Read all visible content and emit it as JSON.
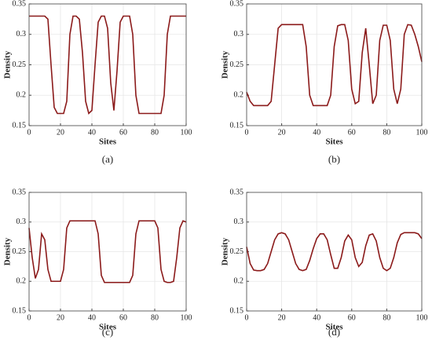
{
  "chart_data": [
    {
      "type": "line",
      "panel_label": "(a)",
      "xlabel": "Sites",
      "ylabel": "Density",
      "color": "#8b1a1a",
      "x": [
        0,
        2,
        4,
        6,
        8,
        10,
        12,
        14,
        16,
        18,
        20,
        22,
        24,
        26,
        28,
        30,
        32,
        34,
        36,
        38,
        40,
        42,
        44,
        46,
        48,
        50,
        52,
        54,
        56,
        58,
        60,
        62,
        64,
        66,
        68,
        70,
        72,
        74,
        76,
        78,
        80,
        82,
        84,
        86,
        88,
        90,
        92,
        94,
        96,
        98,
        100
      ],
      "values": [
        0.33,
        0.33,
        0.33,
        0.33,
        0.33,
        0.33,
        0.325,
        0.25,
        0.18,
        0.17,
        0.17,
        0.17,
        0.19,
        0.3,
        0.33,
        0.33,
        0.325,
        0.27,
        0.19,
        0.17,
        0.175,
        0.25,
        0.32,
        0.33,
        0.33,
        0.31,
        0.22,
        0.175,
        0.24,
        0.32,
        0.33,
        0.33,
        0.33,
        0.3,
        0.2,
        0.17,
        0.17,
        0.17,
        0.17,
        0.17,
        0.17,
        0.17,
        0.17,
        0.2,
        0.3,
        0.33,
        0.33,
        0.33,
        0.33,
        0.33,
        0.33
      ],
      "xlim": [
        0,
        100
      ],
      "xticks": [
        0,
        20,
        40,
        60,
        80,
        100
      ],
      "ylim": [
        0.15,
        0.35
      ],
      "yticks": [
        0.15,
        0.2,
        0.25,
        0.3,
        0.35
      ],
      "grid": true
    },
    {
      "type": "line",
      "panel_label": "(b)",
      "xlabel": "Sites",
      "ylabel": "Density",
      "color": "#8b1a1a",
      "x": [
        0,
        2,
        4,
        6,
        8,
        10,
        12,
        14,
        16,
        18,
        20,
        22,
        24,
        26,
        28,
        30,
        32,
        34,
        36,
        38,
        40,
        42,
        44,
        46,
        48,
        50,
        52,
        54,
        56,
        58,
        60,
        62,
        64,
        66,
        68,
        70,
        72,
        74,
        76,
        78,
        80,
        82,
        84,
        86,
        88,
        90,
        92,
        94,
        96,
        98,
        100
      ],
      "values": [
        0.205,
        0.19,
        0.183,
        0.183,
        0.183,
        0.183,
        0.183,
        0.19,
        0.25,
        0.31,
        0.316,
        0.316,
        0.316,
        0.316,
        0.316,
        0.316,
        0.316,
        0.28,
        0.2,
        0.183,
        0.183,
        0.183,
        0.183,
        0.183,
        0.2,
        0.28,
        0.314,
        0.316,
        0.316,
        0.29,
        0.21,
        0.186,
        0.19,
        0.27,
        0.31,
        0.25,
        0.186,
        0.2,
        0.29,
        0.315,
        0.315,
        0.29,
        0.21,
        0.186,
        0.21,
        0.3,
        0.316,
        0.315,
        0.3,
        0.28,
        0.255
      ],
      "xlim": [
        0,
        100
      ],
      "xticks": [
        0,
        20,
        40,
        60,
        80,
        100
      ],
      "ylim": [
        0.15,
        0.35
      ],
      "yticks": [
        0.15,
        0.2,
        0.25,
        0.3,
        0.35
      ],
      "grid": true
    },
    {
      "type": "line",
      "panel_label": "(c)",
      "xlabel": "Sites",
      "ylabel": "Density",
      "color": "#8b1a1a",
      "x": [
        0,
        2,
        4,
        6,
        8,
        10,
        12,
        14,
        16,
        18,
        20,
        22,
        24,
        26,
        28,
        30,
        32,
        34,
        36,
        38,
        40,
        42,
        44,
        46,
        48,
        50,
        52,
        54,
        56,
        58,
        60,
        62,
        64,
        66,
        68,
        70,
        72,
        74,
        76,
        78,
        80,
        82,
        84,
        86,
        88,
        90,
        92,
        94,
        96,
        98,
        100
      ],
      "values": [
        0.29,
        0.24,
        0.205,
        0.22,
        0.28,
        0.27,
        0.22,
        0.2,
        0.2,
        0.2,
        0.2,
        0.22,
        0.29,
        0.302,
        0.302,
        0.302,
        0.302,
        0.302,
        0.302,
        0.302,
        0.302,
        0.302,
        0.28,
        0.21,
        0.198,
        0.198,
        0.198,
        0.198,
        0.198,
        0.198,
        0.198,
        0.198,
        0.198,
        0.21,
        0.28,
        0.302,
        0.302,
        0.302,
        0.302,
        0.302,
        0.302,
        0.29,
        0.22,
        0.2,
        0.198,
        0.198,
        0.2,
        0.24,
        0.29,
        0.302,
        0.3
      ],
      "xlim": [
        0,
        100
      ],
      "xticks": [
        0,
        20,
        40,
        60,
        80,
        100
      ],
      "ylim": [
        0.15,
        0.35
      ],
      "yticks": [
        0.15,
        0.2,
        0.25,
        0.3,
        0.35
      ],
      "grid": true
    },
    {
      "type": "line",
      "panel_label": "(d)",
      "xlabel": "Sites",
      "ylabel": "Density",
      "color": "#8b1a1a",
      "x": [
        0,
        2,
        4,
        6,
        8,
        10,
        12,
        14,
        16,
        18,
        20,
        22,
        24,
        26,
        28,
        30,
        32,
        34,
        36,
        38,
        40,
        42,
        44,
        46,
        48,
        50,
        52,
        54,
        56,
        58,
        60,
        62,
        64,
        66,
        68,
        70,
        72,
        74,
        76,
        78,
        80,
        82,
        84,
        86,
        88,
        90,
        92,
        94,
        96,
        98,
        100
      ],
      "values": [
        0.258,
        0.23,
        0.219,
        0.218,
        0.218,
        0.22,
        0.23,
        0.25,
        0.27,
        0.28,
        0.282,
        0.28,
        0.27,
        0.25,
        0.23,
        0.22,
        0.218,
        0.22,
        0.235,
        0.255,
        0.272,
        0.28,
        0.28,
        0.27,
        0.245,
        0.222,
        0.222,
        0.24,
        0.268,
        0.278,
        0.27,
        0.24,
        0.225,
        0.232,
        0.26,
        0.278,
        0.28,
        0.268,
        0.24,
        0.222,
        0.218,
        0.222,
        0.24,
        0.265,
        0.279,
        0.282,
        0.282,
        0.282,
        0.282,
        0.28,
        0.272
      ],
      "xlim": [
        0,
        100
      ],
      "xticks": [
        0,
        20,
        40,
        60,
        80,
        100
      ],
      "ylim": [
        0.15,
        0.35
      ],
      "yticks": [
        0.15,
        0.2,
        0.25,
        0.3,
        0.35
      ],
      "grid": true
    }
  ]
}
